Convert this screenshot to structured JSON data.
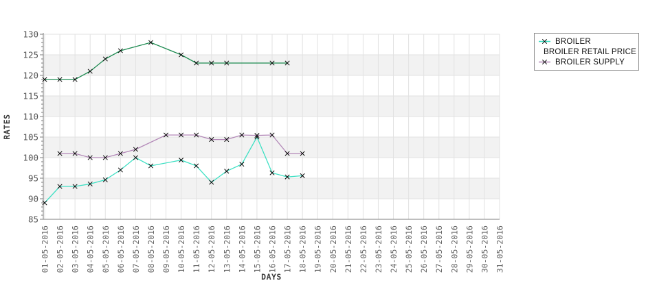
{
  "page": {
    "background": "#ffffff"
  },
  "axes": {
    "y_title": "RATES",
    "x_title": "DAYS"
  },
  "chart_data": {
    "type": "line",
    "title": "",
    "xlabel": "DAYS",
    "ylabel": "RATES",
    "ylim": [
      85,
      130
    ],
    "ytick_step": 5,
    "ytick_minor_step": 1,
    "grid": true,
    "plot_band_color": "#f2f2f2",
    "plot_band_ranges": [
      [
        90,
        95
      ],
      [
        100,
        105
      ],
      [
        110,
        115
      ],
      [
        120,
        125
      ]
    ],
    "gridline_color": "#e2e2e2",
    "spine_color": "#7d7d7d",
    "marker": "x",
    "marker_color": "#000000",
    "legend_position": "top-right-outside",
    "x_categories": [
      "01-05-2016",
      "02-05-2016",
      "03-05-2016",
      "04-05-2016",
      "05-05-2016",
      "06-05-2016",
      "07-05-2016",
      "08-05-2016",
      "09-05-2016",
      "10-05-2016",
      "11-05-2016",
      "12-05-2016",
      "13-05-2016",
      "14-05-2016",
      "15-05-2016",
      "16-05-2016",
      "17-05-2016",
      "18-05-2016",
      "19-05-2016",
      "20-05-2016",
      "21-05-2016",
      "22-05-2016",
      "23-05-2016",
      "24-05-2016",
      "25-05-2016",
      "26-05-2016",
      "27-05-2016",
      "28-05-2016",
      "29-05-2016",
      "30-05-2016",
      "31-05-2016"
    ],
    "series": [
      {
        "name": "BROILER",
        "color": "#3FE0C4",
        "points": [
          [
            1,
            89
          ],
          [
            2,
            93
          ],
          [
            3,
            93
          ],
          [
            4,
            93.6
          ],
          [
            5,
            94.6
          ],
          [
            6,
            97
          ],
          [
            7,
            100
          ],
          [
            8,
            98
          ],
          [
            10,
            99.4
          ],
          [
            11,
            98
          ],
          [
            12,
            94
          ],
          [
            13,
            96.7
          ],
          [
            14,
            98.4
          ],
          [
            15,
            105
          ],
          [
            16,
            96.3
          ],
          [
            17,
            95.3
          ],
          [
            18,
            95.6
          ]
        ]
      },
      {
        "name": "BROILER RETAIL PRICE",
        "color": "#1C8A50",
        "points": [
          [
            1,
            119
          ],
          [
            2,
            119
          ],
          [
            3,
            119
          ],
          [
            4,
            121
          ],
          [
            5,
            124
          ],
          [
            6,
            126
          ],
          [
            8,
            128
          ],
          [
            10,
            125
          ],
          [
            11,
            123
          ],
          [
            12,
            123
          ],
          [
            13,
            123
          ],
          [
            16,
            123
          ],
          [
            17,
            123
          ]
        ]
      },
      {
        "name": "BROILER SUPPLY",
        "color": "#B287B7",
        "points": [
          [
            2,
            101
          ],
          [
            3,
            101
          ],
          [
            4,
            100
          ],
          [
            5,
            100
          ],
          [
            6,
            101
          ],
          [
            7,
            102
          ],
          [
            9,
            105.5
          ],
          [
            10,
            105.5
          ],
          [
            11,
            105.5
          ],
          [
            12,
            104.4
          ],
          [
            13,
            104.4
          ],
          [
            14,
            105.5
          ],
          [
            15,
            105.4
          ],
          [
            16,
            105.5
          ],
          [
            17,
            101
          ],
          [
            18,
            101
          ]
        ]
      }
    ]
  }
}
